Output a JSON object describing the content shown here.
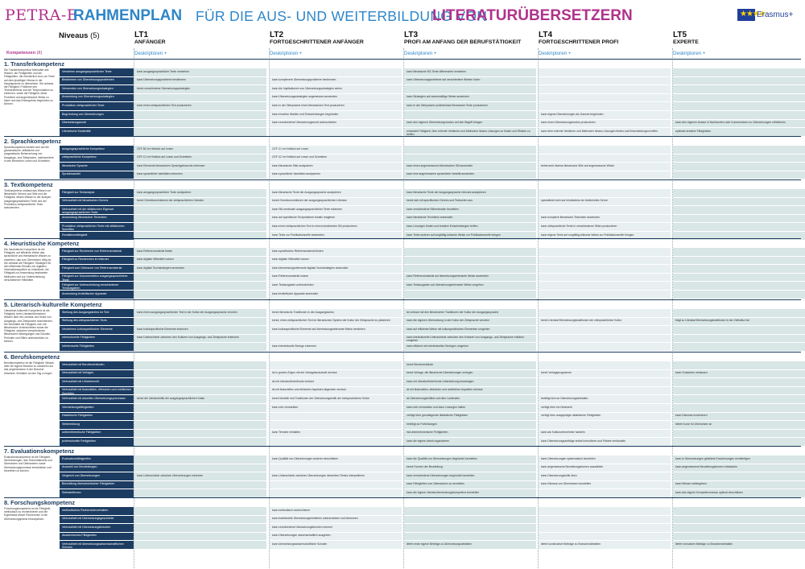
{
  "header": {
    "petra": "PETRA-E",
    "rahmenplan": "RAHMENPLAN",
    "mid": "FÜR DIE AUS- UND WEITERBILDUNG VON",
    "lit": "LITERATURÜBERSETZERN",
    "erasmus": "Erasmus+"
  },
  "niveaus": {
    "label": "Niveaus",
    "count": "(5)"
  },
  "kompetenzen": {
    "label": "Kompetenzen",
    "count": "(8)"
  },
  "levels": [
    {
      "code": "LT1",
      "name": "ANFÄNGER",
      "link": "Deskriptoren +"
    },
    {
      "code": "LT2",
      "name": "FORTGESCHRITTENER ANFÄNGER",
      "link": "Deskriptoren +"
    },
    {
      "code": "LT3",
      "name": "PROFI AM ANFANG DER BERUFSTÄTIGKEIT",
      "link": "Deskriptoren +"
    },
    {
      "code": "LT4",
      "name": "FORTGESCHRITTENER PROFI",
      "link": "Deskriptoren +"
    },
    {
      "code": "LT5",
      "name": "EXPERTE",
      "link": "Deskriptoren +"
    }
  ],
  "sections": [
    {
      "title": "1. Transferkompetenz",
      "desc": "Die Transferkompetenz beinhaltet das Wissen, die Fertigkeiten und die Fähigkeiten, die erforderlich sind, um Texte auf dem jeweiligen Niveau in die Hauptsprache zu übersetzen. Sie umfasst die Fähigkeit, Probleme des Textverstehens und der Textproduktion zu erkennen, sowie die Fähigkeit, diese Probleme auf angemessene Weise zu lösen und das Endergebnis begründen zu können.",
      "rows": [
        {
          "label": "Verstehen ausgangssprachlicher Texte",
          "cells": [
            "kann ausgangssprachliche Texte verstehen",
            "",
            "kann literarische NS-Texte differenziert verstehen",
            "",
            ""
          ]
        },
        {
          "label": "Bestimmen von Übersetzungsproblemen",
          "cells": [
            "kann Übersetzungsprobleme bestimmen",
            "kann komplexere Übersetzungsprobleme bestimmen",
            "kann Übersetzungsprobleme auf verschiedene Weisen lösen",
            "",
            ""
          ]
        },
        {
          "label": "Verwenden von Übersetzungsstrategien",
          "cells": [
            "kennt verschiedene Übersetzungsstrategien",
            "kann die Implikationen von Übersetzungsstrategien sehen",
            "",
            "",
            ""
          ]
        },
        {
          "label": "Anwendung von Übersetzungsstrategien",
          "cells": [
            "",
            "kann Übersetzungsstrategien angemessen anwenden",
            "kann Strategien auf zweckmäßige Weise anwenden",
            "",
            ""
          ]
        },
        {
          "label": "Produktion zielsprachlicher Texte",
          "cells": [
            "kann einen zielsprachlichen Text produzieren",
            "kann in der Zielsprache einen literarischen Text produzieren",
            "kann in der Zielsprache publizierbare literarische Texte produzieren",
            "",
            ""
          ]
        },
        {
          "label": "Begründung von Übersetzungen",
          "cells": [
            "",
            "kann einzelne Wahlen und Entscheidungen begründen",
            "",
            "kann eigene Übersetzungen als Ganzes begründen",
            ""
          ]
        },
        {
          "label": "Übersetzungsmodi",
          "cells": [
            "",
            "kann verschiedene Übersetzungsmodi unterscheiden",
            "kann den eigenen Übersetzungsmodus auf den Begriff bringen",
            "kann einen Übersetzungsmodus produzieren",
            "kann den eigenen Ansatz in Nachworten oder Kommentaren zu Übersetzungen reflektieren"
          ]
        },
        {
          "label": "Literarische Kreativität",
          "cells": [
            "",
            "",
            "entwickelt Fähigkeit, über erlernte Verfahren und Methoden hinaus Lösungen zu finden und Risiken zu treffen",
            "kann über erlernte Verfahren und Methoden hinaus Lösungen finden und Entscheidungen treffen",
            "optimale kreative Fähigkeiten"
          ]
        }
      ]
    },
    {
      "title": "2. Sprachkompetenz",
      "desc": "Sprachkompetenz bezieht sich auf die grammatische, stilistische und pragmatische Beherrschung von Ausgangs- und Zielsprache, insbesondere in den Bereichen Lesen und Schreiben.",
      "rows": [
        {
          "label": "ausgangssprachliche Kompetenz",
          "cells": [
            "CEF B2 im Hinblick auf Lesen",
            "CEF C1 im Hinblick auf Lesen",
            "",
            "",
            ""
          ]
        },
        {
          "label": "zielsprachliche Kompetenz",
          "cells": [
            "CEF C1 im Hinblick auf Lesen und Schreiben",
            "CEF C2 im Hinblick auf Lesen und Schreiben",
            "",
            "",
            ""
          ]
        },
        {
          "label": "literarische Sprache",
          "cells": [
            "kann Elemente literarischen Sprachgebrauchs erkennen",
            "kann literarische Stile analysieren",
            "kann einen angemessenen literarischen Stil anwenden",
            "beherrscht diverse literarische Stile auf angemessene Weise",
            ""
          ]
        },
        {
          "label": "Sprachwandel",
          "cells": [
            "kann sprachliche Varietäten erkennen",
            "kann sprachliche Varietäten analysieren",
            "kann eine angemessene sprachliche Varietät anwenden",
            "",
            ""
          ]
        }
      ]
    },
    {
      "title": "3. Textkompetenz",
      "desc": "Textkompetenz umfasst das Wissen um literarische Genres und Stile und die Fähigkeit, dieses Wissen in der Analyse ausgangssprachlicher Texte und der Produktion zielsprachlicher Texte anzuwenden.",
      "rows": [
        {
          "label": "Fähigkeit zur Textanalyse",
          "cells": [
            "kann ausgangssprachliche Texte analysieren",
            "kann literarische Texte der Ausgangssprache analysieren",
            "kann literarische Texte der Ausgangssprache relevant analysieren",
            "",
            ""
          ]
        },
        {
          "label": "Vertrautheit mit literarischen Genres",
          "cells": [
            "kennt Genrekonventionen der zielsprachlichen Literatur",
            "kennt Genrekonventionen der ausgangssprachlichen Literatur",
            "kennt sich mit spezifischen Genres und Textsorten aus",
            "spezialisiert sich auf mindestens ein bestimmtes Genre",
            ""
          ]
        },
        {
          "label": "Vertrautheit mit der stilistischen Eigenart ausgangssprachlicher Texte",
          "cells": [
            "",
            "kann Stil-merkmale ausgangssprachlicher Texte erkennen",
            "kann verschiedene Stilmerkmale beurteilen",
            "",
            ""
          ]
        },
        {
          "label": "Anwendung literarischer Techniken",
          "cells": [
            "",
            "kann auf spezifische Textprobleme kreativ reagieren",
            "kann literarische Techniken anwenden",
            "kann komplexe literarische Techniken anwenden",
            ""
          ]
        },
        {
          "label": "Produktion zielsprachlicher Texte mit stilistischen Spezifika",
          "cells": [
            "",
            "kann einen zielsprachlichen Text in einem bestimmten Stil produzieren",
            "kann Lösungen finden und kreative Entscheidungen treffen",
            "kann zielsprachliche Texte in verschiedenen Stilen produzieren",
            ""
          ]
        },
        {
          "label": "Redaktionsfähigkeit",
          "cells": [
            "",
            "kann Texte zur Publikationsreife bearbeiten",
            "kann Texte anderer auf sorgfältig-kritische Weise zur Publikationsreife bringen",
            "kann eigene Texte auf sorgfältig-kritische Weise zur Publikationsreife bringen",
            ""
          ]
        }
      ]
    },
    {
      "title": "4. Heuristische Kompetenz",
      "desc": "Die heuristische Kompetenz ist die Fähigkeit, auf effiziente Weise das sprachliche und thematische Wissen zu erwerben, das zum Übersetzen nötig ist. Sie umfasst die Fähigkeit, Strategien für den effizienten Einsatz von digitalen Informationsquellen zu entwickeln, die Fähigkeit zur Anwendung bestimmter Methoden und zur Unterscheidung verschiedener Hilfsmittel.",
      "rows": [
        {
          "label": "Fähigkeit zur Recherche von Referenzmaterial",
          "cells": [
            "kann Referenzmaterial finden",
            "kann spezifisches Referenzmaterial finden",
            "",
            "",
            ""
          ]
        },
        {
          "label": "Fähigkeit zu Recherchen im Internet",
          "cells": [
            "kann digitale Hilfsmittel nutzen",
            "kann digitale Hilfsmittel nutzen",
            "",
            "",
            ""
          ]
        },
        {
          "label": "Fähigkeit zum Gebrauch von Referenzmaterial",
          "cells": [
            "kann digitale Suchstrategien anwenden",
            "kann übersetzungsrelevante digitale Suchstrategien anwenden",
            "",
            "",
            ""
          ]
        },
        {
          "label": "Fähigkeit zur Dokumentation ausgangssprachlicher Texte",
          "cells": [
            "",
            "kann Referenzmaterial nutzen",
            "kann Referenzmaterial auf übersetzungsrelevante Weise anwenden",
            "",
            ""
          ]
        },
        {
          "label": "Fähigkeit zur Unterscheidung verschiedener Textausgaben",
          "cells": [
            "",
            "kann Textausgaben unterscheiden",
            "kann Textausgaben auf übersetzungsrelevante Weise umgehen",
            "",
            ""
          ]
        },
        {
          "label": "Anwendung textkritischer Apparate",
          "cells": [
            "",
            "kann textkritische Apparate anwenden",
            "",
            "",
            ""
          ]
        }
      ]
    },
    {
      "title": "5. Literarisch-kulturelle Kompetenz",
      "desc": "Literarisch-kulturelle Kompetenz ist die Fähigkeit, beim Literaturübersetzen Wissen über die Literatur und Kultur von Ausgangs- und Zielsprache anzuwenden. Sie beinhaltet die Fähigkeit, sich mit literarischen Unterschieden sowie die Fähigkeit, zwischen verschiedenen literarischen Bewegungen und Schulen, Perioden und Stilen unterscheiden zu können.",
      "rows": [
        {
          "label": "Stellung des Ausgangstextes im Text",
          "cells": [
            "kann einen ausgangssprachlichen Text in der Kultur der Ausgangssprache verorten",
            "kennt literarische Traditionen in der Ausgangskultur",
            "ist vertraut mit den literarischen Traditionen der Kultur der Ausgangssprache",
            "",
            ""
          ]
        },
        {
          "label": "Stellung des zielsprachlichen Texts",
          "cells": [
            "",
            "kennt, einen zielsprachlichen Text im literarischen System der Kultur der Zielsprache zu platzieren",
            "kann die eigenen Übersetzung in der Kultur der Zielsprache verorten",
            "kennt Literatur/Übersetzungstraditionen der zielsprachlichen Kultur",
            "trägt zu Literatur/Übersetzungstraditionen in der Zielkultur bei"
          ]
        },
        {
          "label": "Verstehens kulturspezifischer Elemente",
          "cells": [
            "kann kulturspezifische Elemente erkennen",
            "kann kulturspezifische Elemente auf übersetzungsrelevante Weise verstehen",
            "kann auf effiziente Weise mit kulturspezifischen Elementen umgehen",
            "",
            ""
          ]
        },
        {
          "label": "Interkulturelle Fähigkeiten",
          "cells": [
            "kann Unterschiede zwischen den Kulturen von Ausgangs- und Zielsprache erkennen",
            "",
            "kann interkulturelle Unterschiede zwischen den Kulturen von Ausgangs- und Zielsprache erklären umgehen",
            "",
            ""
          ]
        },
        {
          "label": "Intertextuelle Fähigkeiten",
          "cells": [
            "",
            "kann intertextuelle Bezüge erkennen",
            "kann effizient mit intertextuellen Bezügen umgehen",
            "",
            ""
          ]
        }
      ]
    },
    {
      "title": "6. Berufskompetenz",
      "desc": "Berufskompetenz ist die Fähigkeit, Wissen über die eigene Branche zu sammeln und das angemessene in der Branche einsetzen Verhalten an den Tag zu legen.",
      "rows": [
        {
          "label": "Vertrautheit mit Berufsverbänden",
          "cells": [
            "",
            "",
            "kennt Berufsverbände",
            "",
            ""
          ]
        },
        {
          "label": "Vertrautheit mit Verlagen",
          "cells": [
            "",
            "ist in groben Zügen mit der Verlagslandschaft vertraut",
            "kennt Verlage, die literarische Übersetzungen verlegen",
            "kennt Verlagsprogramme",
            "kann Gutachten verfassen"
          ]
        },
        {
          "label": "Vertrautheit mit Urheberrecht",
          "cells": [
            "",
            "ist mit Literaturförderfonds vertraut",
            "kann mit Literaturförderfonds Unterstützung beantragen",
            "",
            ""
          ]
        },
        {
          "label": "Vertrautheit mit finanziellen, ethischen und rechtlichen Aspekten",
          "cells": [
            "",
            "ist mit finanziellen und ethischen Aspekten allgemein vertraut",
            "ist mit finanziellen, ethischen und rechtlichen Aspekten vertraut",
            "",
            ""
          ]
        },
        {
          "label": "Vertrautheit mit aktuellen Übersetzungsprozessen",
          "cells": [
            "kennt die Literaturkritik der ausgangssprachlichen Kultur",
            "kennt Modelle und Traditionen der Übersetzungskritik der zielsprachlichen Kultur",
            "ist Übersetzungskritiken auf dem Laufenden",
            "beteiligt sich an Übersetzungsdebatten",
            ""
          ]
        },
        {
          "label": "Vermarktungsfähigkeiten",
          "cells": [
            "",
            "kann sich vermarkten",
            "kann sich vermarkten und kann Lesungen halten",
            "verfügt über ein Netzwerk",
            ""
          ]
        },
        {
          "label": "Didaktische Fähigkeiten",
          "cells": [
            "",
            "",
            "verfügt über grundlegende didaktische Fähigkeiten",
            "verfügt über ausgeprägte didaktische Fähigkeiten",
            "kann Diskurse moderieren"
          ]
        },
        {
          "label": "Weiterbildung",
          "cells": [
            "",
            "",
            "beteiligt an Fortbildungen",
            "",
            "bietet Kurse für Übersetzer an"
          ]
        },
        {
          "label": "unternehmerische Fähigkeiten",
          "cells": [
            "",
            "kann Termine einhalten",
            "hat unternehmerische Fertigkeiten",
            "kann als Kulturunternehmer handeln",
            ""
          ]
        },
        {
          "label": "professionelle Fertigkeiten",
          "cells": [
            "",
            "",
            "kann die eigene Arbeit organisieren",
            "kann Übersetzungsaufträge selbst formulieren und Pakete verhandeln",
            ""
          ]
        }
      ]
    },
    {
      "title": "7. Evaluationskompetenz",
      "desc": "Evaluationskompetenz ist die Fähigkeit, Übersetzungen, das Textverständnis und Übersetzen und Übersetzern sowie Übersetzungsprozesse einschätzen und beurteilen zu können.",
      "rows": [
        {
          "label": "Evaluationsfähigkeiten",
          "cells": [
            "",
            "kann Qualität von Übersetzungen anderer einschätzen",
            "kann die Qualität von Übersetzungen begründet beurteilen",
            "kann Übersetzungen systematisch beurteilen",
            "kann in Übersetzungen gebildete Erscheinungen rechtfertigen"
          ]
        },
        {
          "label": "Auswahl von Beurteilungen",
          "cells": [
            "",
            "",
            "kennt Formen der Beurteilung",
            "kann angemessene Beurteilungsformen auswählen",
            "kann angemessene Beurteilungsformen entwickeln"
          ]
        },
        {
          "label": "Vergleich von Übersetzungen",
          "cells": [
            "kann Unterschiede zwischen Übersetzungen erkennen",
            "kann Unterschiede zwischen Übersetzungen desselben Textes interpretieren",
            "kann verschiedene Übersetzungen begründet beurteilen",
            "kann Übersetzungskritik üben",
            ""
          ]
        },
        {
          "label": "Beurteilung übersetzerischer Fähigkeiten",
          "cells": [
            "",
            "",
            "kann Fähigkeiten von Übersetzern zu beurteilen",
            "kann Niveaus von Übersetzern beurteilen",
            "kann Wissen weitergeben"
          ]
        },
        {
          "label": "Selbstreflexion",
          "cells": [
            "",
            "",
            "kann die eigene Literaturübersetzungskompetenz beurteilen",
            "",
            "kann das eigene Kompetenzniveau optimal einschätzen"
          ]
        }
      ]
    },
    {
      "title": "8. Forschungskompetenz",
      "desc": "Forschungskompetenz ist die Fähigkeit, methodisch zu recherchieren und die Ergebnisse dieser Recherchen in die Übersetzungspraxis einzuspeisen.",
      "rows": [
        {
          "label": "methodisches Recherchierverhalten",
          "cells": [
            "",
            "kann methodisch recherchieren",
            "",
            "",
            ""
          ]
        },
        {
          "label": "Vertrautheit mit Übersetzungsgeschichte",
          "cells": [
            "",
            "kann traditionelle Übersetzungsrichtlinien unterscheiden und benennen",
            "",
            "",
            ""
          ]
        },
        {
          "label": "Vertrautheit mit Übersetzungstheorien",
          "cells": [
            "",
            "kann verschiedene Übersetzungstheorien nennen",
            "",
            "",
            ""
          ]
        },
        {
          "label": "Akademisches Fähigkeiten",
          "cells": [
            "",
            "kann Übersetzungen wissenschaftlich ausgeben",
            "",
            "",
            ""
          ]
        },
        {
          "label": "Vertrautheit mit übersetzungswissenschaftlichen Schulen",
          "cells": [
            "",
            "kann übersetzungswissenschaftliche Schulen",
            "liefert erste eigene Beiträge zu Übersetzungsdebatten",
            "liefert konstruktive Beiträge zu Branchendebatten",
            "liefert innovative Beiträge zu Branchendebatten"
          ]
        }
      ]
    }
  ],
  "colors": {
    "magenta": "#b0328c",
    "blue": "#2e86c8",
    "navy": "#1c3c62",
    "cell": "#d8e6e5"
  }
}
